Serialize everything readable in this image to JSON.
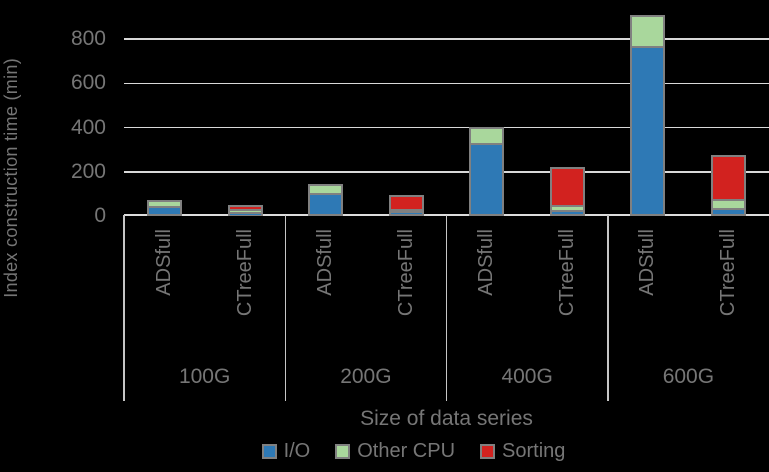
{
  "background": "#000000",
  "text_color": "#767676",
  "grid_color": "#D9D9D9",
  "bar_border_color": "#808080",
  "chart_data": {
    "type": "bar",
    "stacked": true,
    "title": "",
    "ylabel": "Index construction time (min)",
    "xlabel": "Size of data series",
    "ylim": [
      0,
      900
    ],
    "yticks": [
      0,
      200,
      400,
      600,
      800
    ],
    "grid": true,
    "legend_position": "bottom",
    "categories": [
      "100G",
      "200G",
      "400G",
      "600G"
    ],
    "bar_labels": [
      "ADSfull",
      "CTreeFull"
    ],
    "unit": "min",
    "series": [
      {
        "name": "I/O",
        "color": "#2E79B5",
        "values": {
          "ADSfull": [
            33,
            93,
            318,
            757
          ],
          "CTreeFull": [
            2,
            3,
            10,
            20
          ]
        }
      },
      {
        "name": "Other CPU",
        "color": "#A9D79C",
        "values": {
          "ADSfull": [
            20,
            32,
            68,
            133
          ],
          "CTreeFull": [
            3,
            4,
            13,
            32
          ]
        }
      },
      {
        "name": "Sorting",
        "color": "#D2221F",
        "values": {
          "ADSfull": [
            0,
            0,
            0,
            0
          ],
          "CTreeFull": [
            28,
            70,
            182,
            204
          ]
        }
      }
    ]
  }
}
